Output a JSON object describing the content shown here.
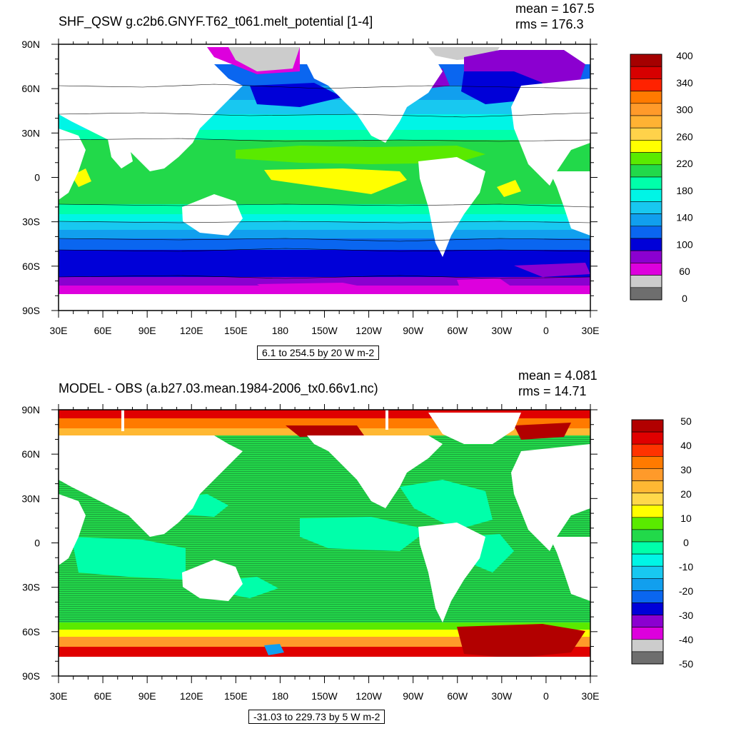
{
  "colors": {
    "land": "#ffffff",
    "ice": "#cccccc",
    "contour": "#000000"
  },
  "panels": [
    {
      "id": "top",
      "title": "SHF_QSW g.c2b6.GNYF.T62_t061.melt_potential [1-4]",
      "mean": "mean = 167.5",
      "rms": "rms = 176.3",
      "info": "6.1 to 254.5 by 20 W m-2",
      "colorbar": {
        "labels": [
          "400",
          "340",
          "300",
          "260",
          "220",
          "180",
          "140",
          "100",
          "60",
          "0"
        ],
        "colors": [
          "#a50000",
          "#d70000",
          "#ff2200",
          "#ff7a00",
          "#ff9a2a",
          "#ffb233",
          "#ffd24a",
          "#ffff00",
          "#5aea00",
          "#22d94a",
          "#00ffaa",
          "#00f5e6",
          "#18c8f0",
          "#119fee",
          "#0a66f0",
          "#0000d8",
          "#8b00d0",
          "#dd00dd",
          "#cccccc",
          "#6e6e6e"
        ]
      }
    },
    {
      "id": "bottom",
      "title": "MODEL - OBS (a.b27.03.mean.1984-2006_tx0.66v1.nc)",
      "mean": "mean = 4.081",
      "rms": "rms = 14.71",
      "info": "-31.03 to 229.73 by 5 W m-2",
      "colorbar": {
        "labels": [
          "50",
          "40",
          "30",
          "20",
          "10",
          "0",
          "-10",
          "-20",
          "-30",
          "-40",
          "-50"
        ],
        "colors": [
          "#b20000",
          "#e00000",
          "#ff3300",
          "#ff7a00",
          "#ff9a2a",
          "#ffb833",
          "#ffd84a",
          "#ffff00",
          "#5aea00",
          "#22d94a",
          "#00ffaa",
          "#00f5e6",
          "#18c8f0",
          "#119fee",
          "#0a66f0",
          "#0000d8",
          "#8b00d0",
          "#dd00dd",
          "#cccccc",
          "#6e6e6e"
        ]
      }
    }
  ],
  "axes": {
    "lon_labels": [
      "30E",
      "60E",
      "90E",
      "120E",
      "150E",
      "180",
      "150W",
      "120W",
      "90W",
      "60W",
      "30W",
      "0",
      "30E"
    ],
    "lat_labels": [
      "90N",
      "60N",
      "30N",
      "0",
      "30S",
      "60S",
      "90S"
    ]
  }
}
